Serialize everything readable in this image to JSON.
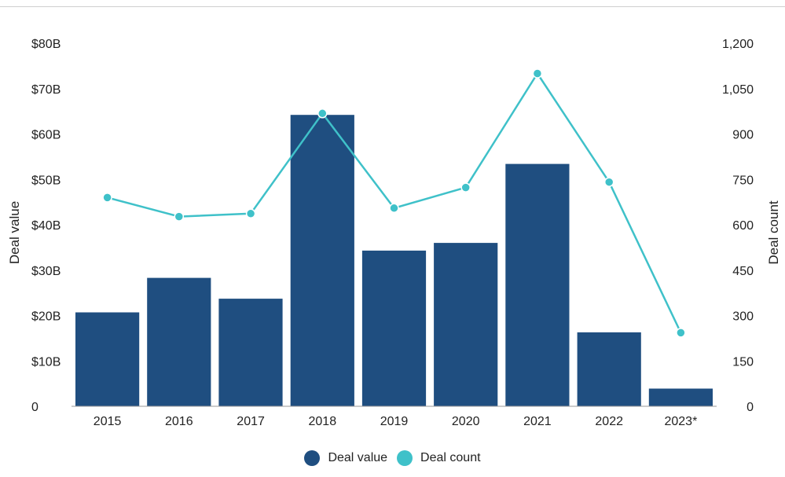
{
  "chart_data": {
    "type": "bar+line",
    "categories": [
      "2015",
      "2016",
      "2017",
      "2018",
      "2019",
      "2020",
      "2021",
      "2022",
      "2023*"
    ],
    "series": [
      {
        "name": "Deal value",
        "type": "bar",
        "axis": "left",
        "color": "#1f4e80",
        "values": [
          20.7,
          28.3,
          23.7,
          64.2,
          34.3,
          36.0,
          53.4,
          16.3,
          3.9
        ]
      },
      {
        "name": "Deal count",
        "type": "line",
        "axis": "right",
        "color": "#3fc1c9",
        "values": [
          690,
          627,
          637,
          968,
          655,
          723,
          1100,
          741,
          243
        ]
      }
    ],
    "y_left": {
      "label": "Deal value",
      "range": [
        0,
        80
      ],
      "ticks": [
        "0",
        "$10B",
        "$20B",
        "$30B",
        "$40B",
        "$50B",
        "$60B",
        "$70B",
        "$80B"
      ]
    },
    "y_right": {
      "label": "Deal count",
      "range": [
        0,
        1200
      ],
      "ticks": [
        "0",
        "150",
        "300",
        "450",
        "600",
        "750",
        "900",
        "1,050",
        "1,200"
      ]
    },
    "grid": false,
    "legend_position": "bottom-center"
  }
}
